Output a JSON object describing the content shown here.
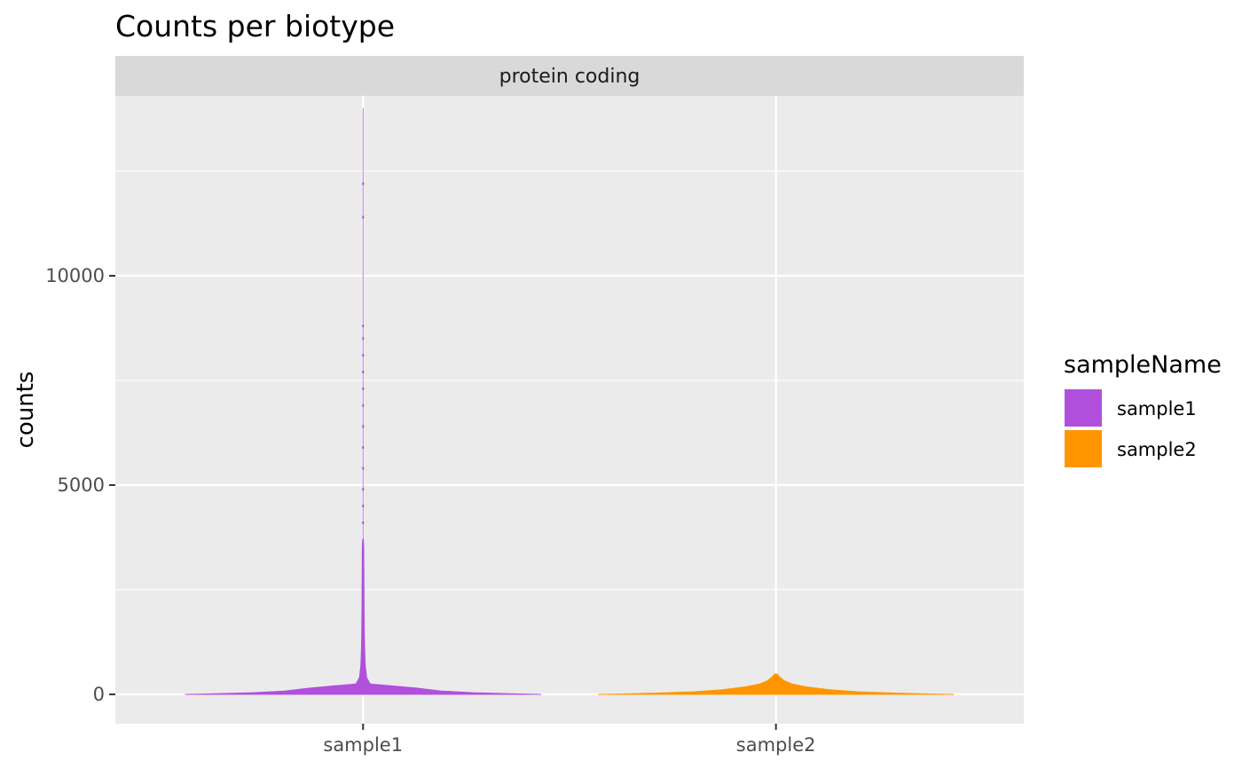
{
  "chart_data": {
    "type": "violin",
    "title": "Counts per biotype",
    "facet": "protein coding",
    "xlabel": "",
    "ylabel": "counts",
    "categories": [
      "sample1",
      "sample2"
    ],
    "ylim": [
      -700,
      14300
    ],
    "yticks": [
      0,
      5000,
      10000
    ],
    "ytick_labels": [
      "0",
      "5000",
      "10000"
    ],
    "grid": true,
    "legend": {
      "title": "sampleName",
      "position": "right",
      "entries": [
        {
          "name": "sample1",
          "color": "#b050dd"
        },
        {
          "name": "sample2",
          "color": "#ff9500"
        }
      ]
    },
    "series": [
      {
        "name": "sample1",
        "color": "#b050dd",
        "max": 14000,
        "dots": [
          12200,
          11400,
          8800,
          8500,
          8100,
          7700,
          7300,
          6900,
          6400,
          5900,
          5400,
          4900,
          4500,
          4100
        ],
        "profile": [
          [
            0,
            1.0
          ],
          [
            15,
            0.82
          ],
          [
            40,
            0.62
          ],
          [
            80,
            0.44
          ],
          [
            150,
            0.3
          ],
          [
            250,
            0.04
          ],
          [
            400,
            0.02
          ],
          [
            700,
            0.012
          ],
          [
            1200,
            0.008
          ],
          [
            2000,
            0.006
          ],
          [
            3500,
            0.004
          ],
          [
            3700,
            0.002
          ]
        ]
      },
      {
        "name": "sample2",
        "color": "#ff9500",
        "max": 480,
        "dots": [],
        "profile": [
          [
            0,
            1.0
          ],
          [
            10,
            0.85
          ],
          [
            30,
            0.66
          ],
          [
            60,
            0.46
          ],
          [
            110,
            0.3
          ],
          [
            180,
            0.17
          ],
          [
            250,
            0.09
          ],
          [
            330,
            0.045
          ],
          [
            420,
            0.02
          ],
          [
            480,
            0.008
          ]
        ]
      }
    ]
  }
}
